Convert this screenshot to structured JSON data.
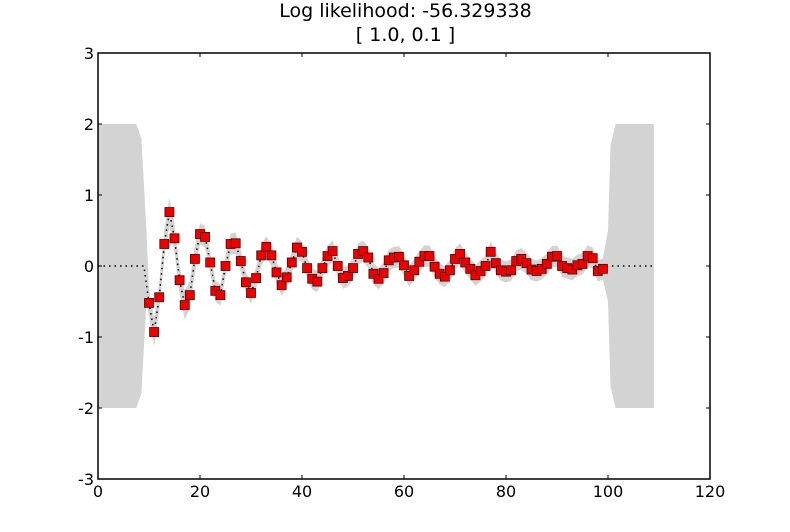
{
  "chart_data": {
    "type": "line",
    "title": "Log likelihood: -56.329338",
    "subtitle": "[ 1.0, 0.1 ]",
    "xlabel": "",
    "ylabel": "",
    "xlim": [
      0,
      120
    ],
    "ylim": [
      -3,
      3
    ],
    "xticks": [
      0,
      20,
      40,
      60,
      80,
      100,
      120
    ],
    "yticks": [
      3,
      2,
      1,
      0,
      -1,
      -2,
      -3
    ],
    "grid": false,
    "legend": null,
    "colors": {
      "marker_fill": "#ee0000",
      "marker_edge": "#550000",
      "mean_line": "#000000",
      "band": "#d3d3d3",
      "axes": "#000000"
    },
    "series": [
      {
        "name": "observations",
        "style": "red square markers",
        "x": [
          10,
          11,
          12,
          13,
          14,
          15,
          16,
          17,
          18,
          19,
          20,
          21,
          22,
          23,
          24,
          25,
          26,
          27,
          28,
          29,
          30,
          31,
          32,
          33,
          34,
          35,
          36,
          37,
          38,
          39,
          40,
          41,
          42,
          43,
          44,
          45,
          46,
          47,
          48,
          49,
          50,
          51,
          52,
          53,
          54,
          55,
          56,
          57,
          58,
          59,
          60,
          61,
          62,
          63,
          64,
          65,
          66,
          67,
          68,
          69,
          70,
          71,
          72,
          73,
          74,
          75,
          76,
          77,
          78,
          79,
          80,
          81,
          82,
          83,
          84,
          85,
          86,
          87,
          88,
          89,
          90,
          91,
          92,
          93,
          94,
          95,
          96,
          97,
          98,
          99
        ],
        "y": [
          -0.52,
          -0.93,
          -0.44,
          0.31,
          0.76,
          0.39,
          -0.2,
          -0.55,
          -0.41,
          0.1,
          0.45,
          0.41,
          0.05,
          -0.35,
          -0.41,
          0.0,
          0.31,
          0.32,
          0.07,
          -0.23,
          -0.38,
          -0.17,
          0.15,
          0.27,
          0.15,
          -0.09,
          -0.27,
          -0.16,
          0.05,
          0.26,
          0.2,
          -0.03,
          -0.18,
          -0.22,
          -0.03,
          0.14,
          0.21,
          0.0,
          -0.17,
          -0.14,
          -0.03,
          0.17,
          0.21,
          0.12,
          -0.11,
          -0.18,
          -0.1,
          0.08,
          0.12,
          0.13,
          0.01,
          -0.14,
          -0.06,
          0.06,
          0.14,
          0.14,
          -0.01,
          -0.11,
          -0.15,
          -0.06,
          0.1,
          0.17,
          0.05,
          -0.04,
          -0.13,
          -0.07,
          0.0,
          0.2,
          0.04,
          -0.06,
          -0.08,
          -0.06,
          0.07,
          0.1,
          0.04,
          -0.05,
          -0.07,
          -0.04,
          0.03,
          0.13,
          0.14,
          0.0,
          -0.03,
          -0.05,
          0.01,
          0.03,
          0.14,
          0.11,
          -0.07,
          -0.04
        ]
      },
      {
        "name": "predictive mean",
        "style": "black dotted line",
        "x_range": [
          0,
          109
        ],
        "note": "0 outside data range, follows observations inside"
      },
      {
        "name": "confidence band",
        "style": "light gray fill",
        "outer_bounds": [
          -2,
          2
        ],
        "left_region_x": [
          0,
          9
        ],
        "right_region_x": [
          100,
          109
        ],
        "inner_halfwidth": 0.15
      }
    ]
  }
}
